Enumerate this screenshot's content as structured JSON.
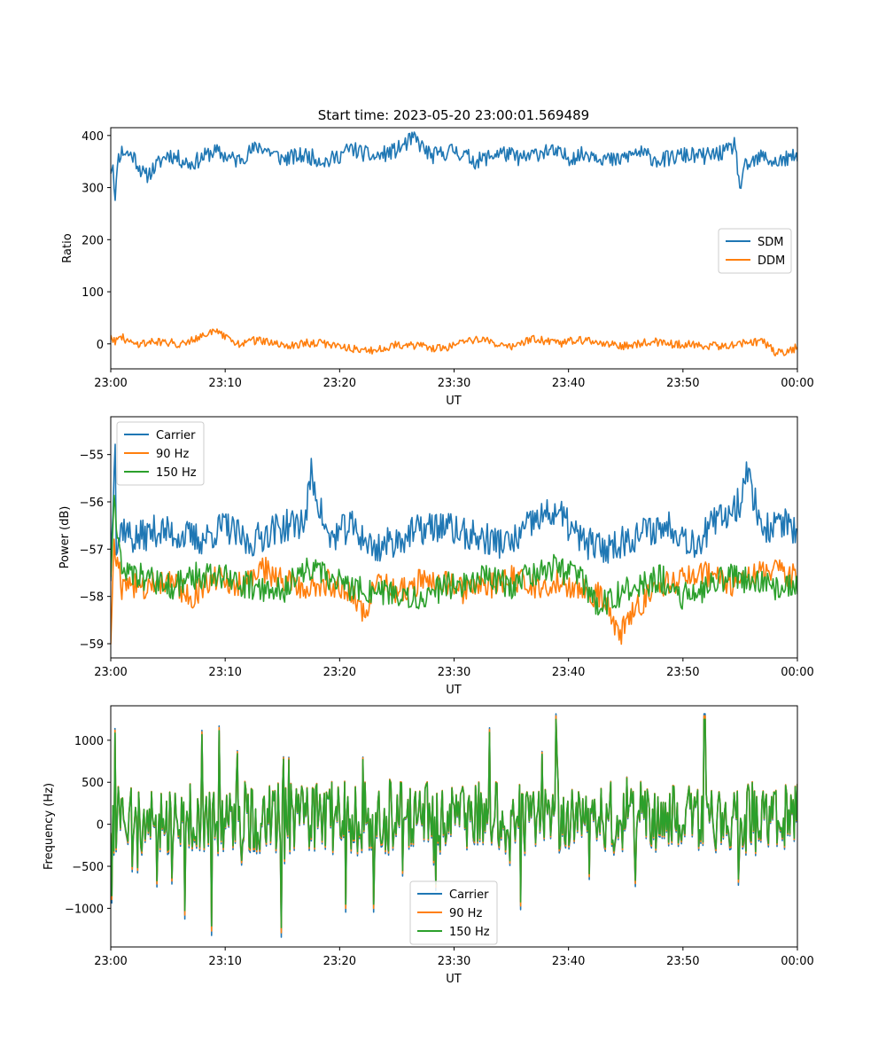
{
  "figure": {
    "title": "Start time: 2023-05-20 23:00:01.569489"
  },
  "colors": {
    "series1": "#1f77b4",
    "series2": "#ff7f0e",
    "series3": "#2ca02c"
  },
  "chart_data": [
    {
      "type": "line",
      "xlabel": "UT",
      "ylabel": "Ratio",
      "xlim": [
        "23:00",
        "00:00"
      ],
      "ylim": [
        -48,
        415
      ],
      "xticks": [
        "23:00",
        "23:10",
        "23:20",
        "23:30",
        "23:40",
        "23:50",
        "00:00"
      ],
      "yticks": [
        0,
        100,
        200,
        300,
        400
      ],
      "legend": "center-right",
      "series": [
        {
          "name": "SDM",
          "anchors": [
            [
              0,
              335
            ],
            [
              0.2,
              348
            ],
            [
              0.4,
              268
            ],
            [
              0.6,
              355
            ],
            [
              1,
              370
            ],
            [
              2,
              360
            ],
            [
              3,
              320
            ],
            [
              5,
              365
            ],
            [
              7,
              345
            ],
            [
              9,
              370
            ],
            [
              11,
              352
            ],
            [
              13,
              380
            ],
            [
              15,
              355
            ],
            [
              17,
              362
            ],
            [
              19,
              350
            ],
            [
              21,
              375
            ],
            [
              23,
              358
            ],
            [
              25,
              372
            ],
            [
              26.5,
              395
            ],
            [
              28,
              360
            ],
            [
              30,
              372
            ],
            [
              32,
              350
            ],
            [
              34,
              368
            ],
            [
              36,
              355
            ],
            [
              38,
              372
            ],
            [
              40,
              358
            ],
            [
              42,
              366
            ],
            [
              44,
              350
            ],
            [
              46,
              368
            ],
            [
              48,
              352
            ],
            [
              50,
              362
            ],
            [
              52,
              360
            ],
            [
              54,
              370
            ],
            [
              54.5,
              385
            ],
            [
              55,
              300
            ],
            [
              55.5,
              340
            ],
            [
              57,
              360
            ],
            [
              58,
              348
            ],
            [
              60,
              360
            ]
          ],
          "amp": 16
        },
        {
          "name": "DDM",
          "anchors": [
            [
              0,
              20
            ],
            [
              0.3,
              5
            ],
            [
              1,
              12
            ],
            [
              2,
              0
            ],
            [
              4,
              5
            ],
            [
              6,
              0
            ],
            [
              9,
              25
            ],
            [
              11,
              0
            ],
            [
              13,
              8
            ],
            [
              15,
              -5
            ],
            [
              17,
              2
            ],
            [
              19,
              0
            ],
            [
              21,
              -8
            ],
            [
              23,
              -15
            ],
            [
              25,
              0
            ],
            [
              27,
              -5
            ],
            [
              29,
              -10
            ],
            [
              31,
              8
            ],
            [
              33,
              5
            ],
            [
              35,
              -5
            ],
            [
              37,
              10
            ],
            [
              39,
              0
            ],
            [
              41,
              8
            ],
            [
              43,
              0
            ],
            [
              45,
              -5
            ],
            [
              47,
              5
            ],
            [
              49,
              0
            ],
            [
              51,
              -2
            ],
            [
              53,
              -5
            ],
            [
              55,
              0
            ],
            [
              57,
              5
            ],
            [
              58,
              -15
            ],
            [
              59,
              -20
            ],
            [
              60,
              -5
            ]
          ],
          "amp": 8
        }
      ]
    },
    {
      "type": "line",
      "xlabel": "UT",
      "ylabel": "Power (dB)",
      "xlim": [
        "23:00",
        "00:00"
      ],
      "ylim": [
        -59.3,
        -54.2
      ],
      "xticks": [
        "23:00",
        "23:10",
        "23:20",
        "23:30",
        "23:40",
        "23:50",
        "00:00"
      ],
      "yticks": [
        -55,
        -56,
        -57,
        -58,
        -59
      ],
      "legend": "top-left",
      "series": [
        {
          "name": "Carrier",
          "anchors": [
            [
              0,
              -57.5
            ],
            [
              0.2,
              -56
            ],
            [
              0.35,
              -54.4
            ],
            [
              0.5,
              -57
            ],
            [
              1,
              -56.5
            ],
            [
              2,
              -56.8
            ],
            [
              4,
              -56.6
            ],
            [
              6,
              -56.7
            ],
            [
              8,
              -56.8
            ],
            [
              10,
              -56.5
            ],
            [
              12,
              -56.9
            ],
            [
              14,
              -56.6
            ],
            [
              17,
              -56.4
            ],
            [
              17.5,
              -55.4
            ],
            [
              19,
              -56.8
            ],
            [
              21,
              -56.5
            ],
            [
              23,
              -57
            ],
            [
              25,
              -56.8
            ],
            [
              27,
              -56.6
            ],
            [
              29,
              -56.5
            ],
            [
              31,
              -56.7
            ],
            [
              33,
              -56.8
            ],
            [
              35,
              -56.9
            ],
            [
              37,
              -56.4
            ],
            [
              39,
              -56.2
            ],
            [
              41,
              -56.8
            ],
            [
              43,
              -57
            ],
            [
              45,
              -56.8
            ],
            [
              47,
              -56.6
            ],
            [
              49,
              -56.5
            ],
            [
              51,
              -56.9
            ],
            [
              53,
              -56.4
            ],
            [
              55,
              -56
            ],
            [
              55.5,
              -55.3
            ],
            [
              57,
              -56.6
            ],
            [
              59,
              -56.4
            ],
            [
              60,
              -56.8
            ]
          ],
          "amp": 0.35
        },
        {
          "name": "90 Hz",
          "anchors": [
            [
              0,
              -58.9
            ],
            [
              0.3,
              -57
            ],
            [
              1,
              -57.8
            ],
            [
              3,
              -57.8
            ],
            [
              5,
              -57.6
            ],
            [
              7,
              -58
            ],
            [
              9,
              -57.6
            ],
            [
              11,
              -57.8
            ],
            [
              13,
              -57.4
            ],
            [
              15,
              -57.6
            ],
            [
              17,
              -57.8
            ],
            [
              19,
              -57.7
            ],
            [
              21,
              -57.9
            ],
            [
              22.5,
              -58.5
            ],
            [
              23,
              -57.7
            ],
            [
              25,
              -57.9
            ],
            [
              27,
              -57.7
            ],
            [
              29,
              -57.7
            ],
            [
              31,
              -57.9
            ],
            [
              33,
              -57.8
            ],
            [
              35,
              -57.6
            ],
            [
              37,
              -57.8
            ],
            [
              39,
              -57.7
            ],
            [
              41,
              -57.9
            ],
            [
              43,
              -58
            ],
            [
              44.5,
              -58.8
            ],
            [
              46,
              -58.2
            ],
            [
              48,
              -57.8
            ],
            [
              50,
              -57.6
            ],
            [
              52,
              -57.5
            ],
            [
              54,
              -57.8
            ],
            [
              56,
              -57.5
            ],
            [
              58,
              -57.4
            ],
            [
              60,
              -57.6
            ]
          ],
          "amp": 0.28
        },
        {
          "name": "150 Hz",
          "anchors": [
            [
              0,
              -57.5
            ],
            [
              0.3,
              -56
            ],
            [
              1,
              -57.5
            ],
            [
              3,
              -57.6
            ],
            [
              5,
              -57.8
            ],
            [
              7,
              -57.6
            ],
            [
              9,
              -57.5
            ],
            [
              11,
              -57.7
            ],
            [
              13,
              -57.8
            ],
            [
              15,
              -57.9
            ],
            [
              17,
              -57.4
            ],
            [
              19,
              -57.6
            ],
            [
              21,
              -57.8
            ],
            [
              23,
              -57.9
            ],
            [
              25,
              -58
            ],
            [
              27,
              -58.1
            ],
            [
              29,
              -57.8
            ],
            [
              31,
              -57.7
            ],
            [
              33,
              -57.6
            ],
            [
              35,
              -57.8
            ],
            [
              37,
              -57.5
            ],
            [
              39,
              -57.4
            ],
            [
              41,
              -57.6
            ],
            [
              42.5,
              -58.2
            ],
            [
              44,
              -58
            ],
            [
              46,
              -57.8
            ],
            [
              48,
              -57.6
            ],
            [
              50,
              -58
            ],
            [
              52,
              -57.8
            ],
            [
              54,
              -57.6
            ],
            [
              56,
              -57.7
            ],
            [
              58,
              -57.8
            ],
            [
              60,
              -57.8
            ]
          ],
          "amp": 0.3
        }
      ]
    },
    {
      "type": "line",
      "xlabel": "UT",
      "ylabel": "Frequency (Hz)",
      "xlim": [
        "23:00",
        "00:00"
      ],
      "ylim": [
        -1460,
        1410
      ],
      "xticks": [
        "23:00",
        "23:10",
        "23:20",
        "23:30",
        "23:40",
        "23:50",
        "00:00"
      ],
      "yticks": [
        1000,
        500,
        0,
        -500,
        -1000
      ],
      "legend": "bottom-center",
      "series": [
        {
          "name": "Carrier",
          "anchors": [
            [
              0,
              0
            ],
            [
              60,
              0
            ]
          ],
          "amp": 0
        },
        {
          "name": "90 Hz",
          "anchors": [
            [
              0,
              0
            ],
            [
              60,
              0
            ]
          ],
          "amp": 0
        },
        {
          "name": "150 Hz",
          "anchors": [
            [
              0,
              50
            ],
            [
              0.4,
              1120
            ],
            [
              0.8,
              -600
            ],
            [
              3,
              0
            ],
            [
              6.5,
              -1080
            ],
            [
              8,
              1100
            ],
            [
              8.8,
              -1270
            ],
            [
              9.5,
              1150
            ],
            [
              12,
              0
            ],
            [
              14.9,
              -1290
            ],
            [
              16,
              600
            ],
            [
              20.5,
              -1000
            ],
            [
              23,
              -1000
            ],
            [
              27,
              800
            ],
            [
              31,
              -800
            ],
            [
              35,
              500
            ],
            [
              38.9,
              1290
            ],
            [
              41,
              -900
            ],
            [
              44,
              600
            ],
            [
              47,
              -700
            ],
            [
              51.9,
              1290
            ],
            [
              53,
              -800
            ],
            [
              56,
              600
            ],
            [
              59,
              -400
            ],
            [
              60,
              0
            ]
          ],
          "amp": 430
        }
      ]
    }
  ]
}
